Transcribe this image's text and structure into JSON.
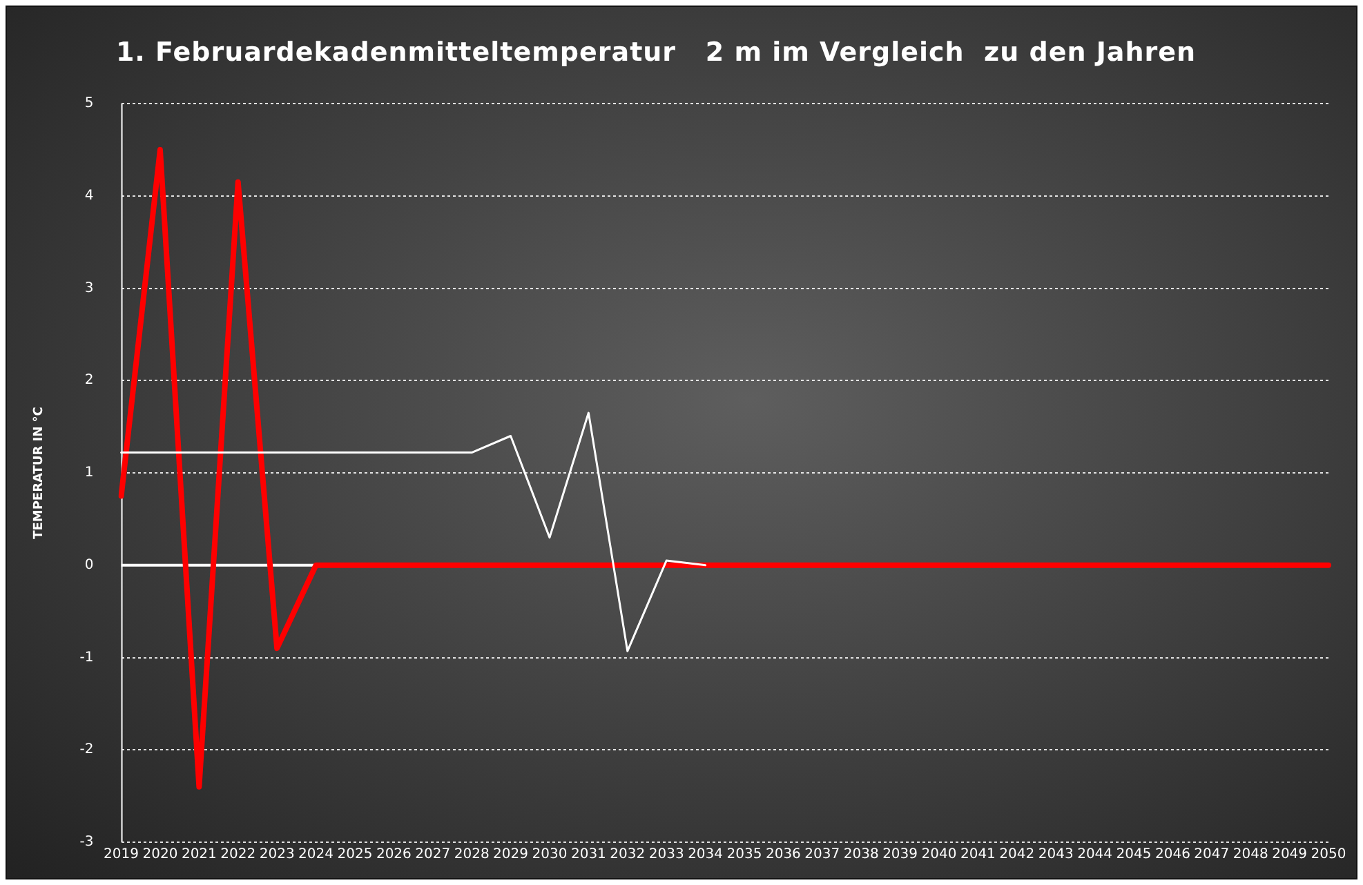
{
  "chart_data": {
    "type": "line",
    "title": "1. Februardekadenmitteltemperatur   2 m im Vergleich  zu den Jahren",
    "ylabel": "TEMPERATUR IN °C",
    "categories": [
      "2019",
      "2020",
      "2021",
      "2022",
      "2023",
      "2024",
      "2025",
      "2026",
      "2027",
      "2028",
      "2029",
      "2030",
      "2031",
      "2032",
      "2033",
      "2034",
      "2035",
      "2036",
      "2037",
      "2038",
      "2039",
      "2040",
      "2041",
      "2042",
      "2043",
      "2044",
      "2045",
      "2046",
      "2047",
      "2048",
      "2049",
      "2050"
    ],
    "series": [
      {
        "color": "#ffffff",
        "values": [
          1.22,
          1.22,
          1.22,
          1.22,
          1.22,
          1.22,
          1.22,
          1.22,
          1.22,
          1.22,
          1.4,
          0.3,
          1.65,
          -0.93,
          0.05,
          0,
          null,
          null,
          null,
          null,
          null,
          null,
          null,
          null,
          null,
          null,
          null,
          null,
          null,
          null,
          null,
          null
        ]
      },
      {
        "color": "#ff0000",
        "values": [
          0.75,
          4.5,
          -2.4,
          4.15,
          -0.9,
          0,
          0,
          0,
          0,
          0,
          0,
          0,
          0,
          0,
          0,
          0,
          0,
          0,
          0,
          0,
          0,
          0,
          0,
          0,
          0,
          0,
          0,
          0,
          0,
          0,
          0,
          0
        ]
      }
    ],
    "ylim": [
      -3,
      5
    ],
    "yticks": [
      -3,
      -2,
      -1,
      0,
      1,
      2,
      3,
      4,
      5
    ],
    "grid": "y",
    "legend": false,
    "marker": "none",
    "line_style": "solid"
  }
}
